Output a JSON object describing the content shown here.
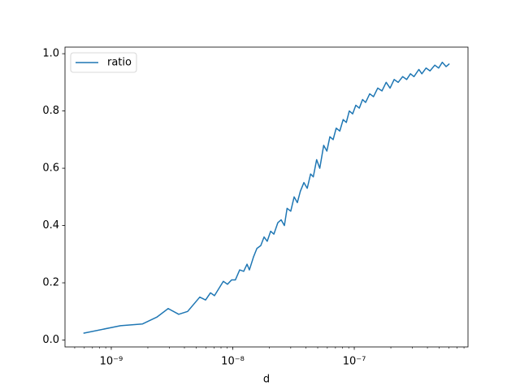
{
  "chart_data": {
    "type": "line",
    "xlabel": "d",
    "xscale": "log",
    "legend": "upper left",
    "x": [
      5.9e-10,
      1.19e-09,
      1.8e-09,
      2.37e-09,
      2.94e-09,
      3.59e-09,
      4.25e-09,
      5.35e-09,
      5.97e-09,
      6.55e-09,
      7.07e-09,
      8.36e-09,
      9.05e-09,
      9.78e-09,
      1.05e-08,
      1.14e-08,
      1.23e-08,
      1.31e-08,
      1.37e-08,
      1.48e-08,
      1.58e-08,
      1.7e-08,
      1.81e-08,
      1.92e-08,
      2.05e-08,
      2.18e-08,
      2.35e-08,
      2.5e-08,
      2.66e-08,
      2.8e-08,
      3e-08,
      3.2e-08,
      3.4e-08,
      3.6e-08,
      3.85e-08,
      4.1e-08,
      4.37e-08,
      4.6e-08,
      4.9e-08,
      5.2e-08,
      5.6e-08,
      5.95e-08,
      6.3e-08,
      6.7e-08,
      7.1e-08,
      7.6e-08,
      8.1e-08,
      8.6e-08,
      9.1e-08,
      9.7e-08,
      1.03e-07,
      1.1e-07,
      1.17e-07,
      1.24e-07,
      1.34e-07,
      1.44e-07,
      1.56e-07,
      1.69e-07,
      1.83e-07,
      1.97e-07,
      2.13e-07,
      2.3e-07,
      2.5e-07,
      2.7e-07,
      2.9e-07,
      3.1e-07,
      3.4e-07,
      3.6e-07,
      3.9e-07,
      4.2e-07,
      4.6e-07,
      4.95e-07,
      5.3e-07,
      5.7e-07,
      6.07e-07
    ],
    "series": [
      {
        "name": "ratio",
        "color": "#1f77b4",
        "values": [
          0.024,
          0.05,
          0.056,
          0.08,
          0.11,
          0.09,
          0.1,
          0.15,
          0.14,
          0.165,
          0.155,
          0.205,
          0.195,
          0.21,
          0.21,
          0.245,
          0.24,
          0.265,
          0.245,
          0.29,
          0.32,
          0.33,
          0.36,
          0.345,
          0.38,
          0.37,
          0.41,
          0.42,
          0.4,
          0.46,
          0.45,
          0.5,
          0.48,
          0.52,
          0.55,
          0.53,
          0.58,
          0.57,
          0.63,
          0.6,
          0.68,
          0.66,
          0.71,
          0.7,
          0.74,
          0.73,
          0.77,
          0.76,
          0.8,
          0.79,
          0.82,
          0.81,
          0.84,
          0.83,
          0.86,
          0.85,
          0.88,
          0.87,
          0.9,
          0.88,
          0.91,
          0.9,
          0.92,
          0.91,
          0.93,
          0.92,
          0.945,
          0.93,
          0.95,
          0.94,
          0.96,
          0.95,
          0.97,
          0.955,
          0.965
        ]
      }
    ],
    "xlim": [
      4.16e-10,
      8.63e-07
    ],
    "xticks": [
      {
        "value": 1e-09,
        "label": "10⁻⁹"
      },
      {
        "value": 1e-08,
        "label": "10⁻⁸"
      },
      {
        "value": 1e-07,
        "label": "10⁻⁷"
      }
    ],
    "xminorticks": [
      5e-10,
      6e-10,
      7e-10,
      8e-10,
      9e-10,
      2e-09,
      3e-09,
      4e-09,
      5e-09,
      6e-09,
      7e-09,
      8e-09,
      9e-09,
      2e-08,
      3e-08,
      4e-08,
      5e-08,
      6e-08,
      7e-08,
      8e-08,
      9e-08,
      2e-07,
      3e-07,
      4e-07,
      5e-07,
      6e-07,
      7e-07,
      8e-07
    ],
    "ylim": [
      -0.024,
      1.023
    ],
    "yticks": [
      {
        "value": 0,
        "label": "0.0"
      },
      0.2,
      0.4,
      0.6,
      0.8,
      {
        "value": 1,
        "label": "1.0"
      }
    ]
  }
}
